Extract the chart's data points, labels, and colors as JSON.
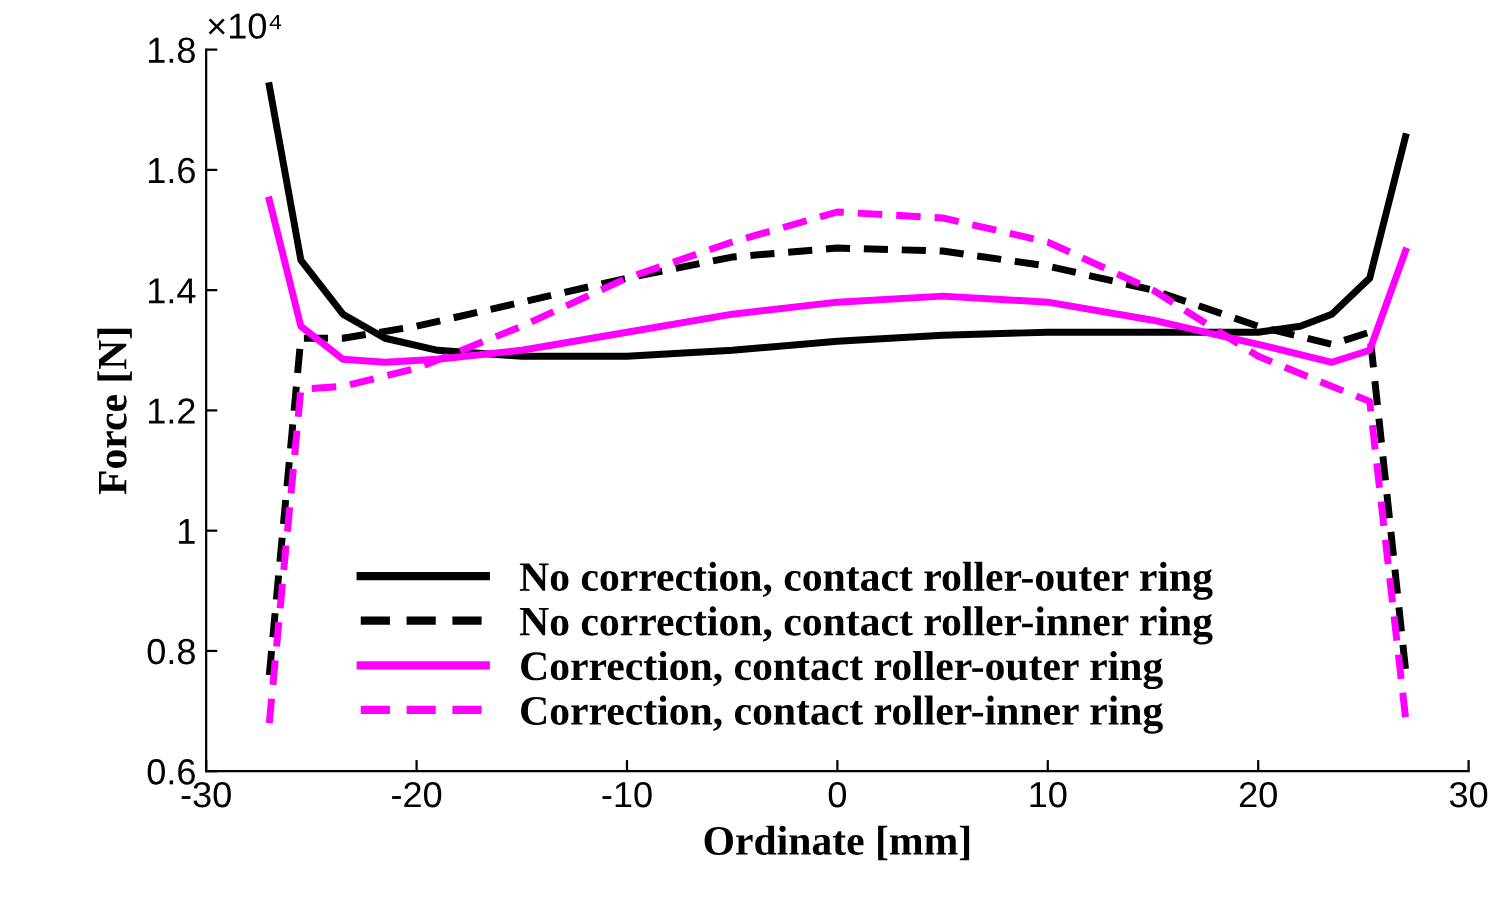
{
  "chart_data": {
    "type": "line",
    "xlabel": "Ordinate [mm]",
    "ylabel": "Force [N]",
    "annotations": [
      "×10⁴"
    ],
    "xlim": [
      -30,
      30
    ],
    "xticks": [
      -30,
      -20,
      -10,
      0,
      10,
      20,
      30
    ],
    "ylim": [
      0.6,
      1.8
    ],
    "yticks": [
      0.6,
      0.8,
      1,
      1.2,
      1.4,
      1.6,
      1.8
    ],
    "grid": false,
    "legend": "bottom",
    "marker": "none",
    "series": [
      {
        "name": "No correction, contact roller-outer ring",
        "color": "#000000",
        "line_style": "solid",
        "x": [
          -27,
          -25.5,
          -23.5,
          -21.5,
          -19,
          -15,
          -10,
          -5,
          0,
          5,
          10,
          15,
          20,
          22,
          23.5,
          25.3,
          27
        ],
        "values": [
          1.74,
          1.45,
          1.36,
          1.32,
          1.3,
          1.29,
          1.29,
          1.3,
          1.315,
          1.325,
          1.33,
          1.33,
          1.33,
          1.34,
          1.36,
          1.42,
          1.655
        ]
      },
      {
        "name": "No correction, contact roller-inner ring",
        "color": "#000000",
        "line_style": "dashed",
        "x": [
          -27,
          -25.5,
          -23.5,
          -20,
          -15,
          -10,
          -5,
          0,
          5,
          10,
          15,
          20,
          23.5,
          25.3,
          27
        ],
        "values": [
          0.76,
          1.32,
          1.32,
          1.34,
          1.38,
          1.42,
          1.455,
          1.47,
          1.465,
          1.44,
          1.4,
          1.34,
          1.31,
          1.33,
          0.77
        ]
      },
      {
        "name": "Correction, contact roller-outer ring",
        "color": "#ff00ff",
        "line_style": "solid",
        "x": [
          -27,
          -25.5,
          -23.5,
          -21.5,
          -19,
          -15,
          -10,
          -5,
          0,
          5,
          10,
          15,
          20,
          23.5,
          25.3,
          27
        ],
        "values": [
          1.55,
          1.34,
          1.285,
          1.28,
          1.285,
          1.3,
          1.33,
          1.36,
          1.38,
          1.39,
          1.38,
          1.35,
          1.31,
          1.28,
          1.3,
          1.465
        ]
      },
      {
        "name": "Correction, contact roller-inner ring",
        "color": "#ff00ff",
        "line_style": "dashed",
        "x": [
          -27,
          -25.5,
          -23.5,
          -20,
          -15,
          -10,
          -5,
          0,
          5,
          10,
          15,
          20,
          23.5,
          25.3,
          27
        ],
        "values": [
          0.68,
          1.235,
          1.24,
          1.27,
          1.34,
          1.42,
          1.48,
          1.53,
          1.52,
          1.48,
          1.4,
          1.29,
          1.24,
          1.215,
          0.69
        ]
      }
    ]
  }
}
